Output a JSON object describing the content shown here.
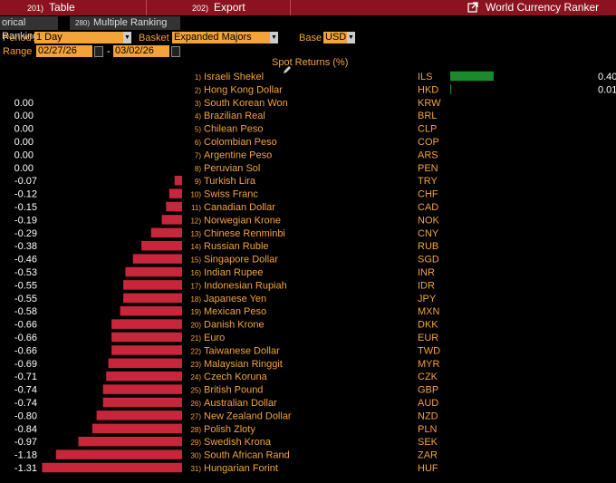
{
  "toolbar": {
    "table_num": "201)",
    "table_label": "Table",
    "export_num": "202)",
    "export_label": "Export",
    "window_title": "World Currency Ranker",
    "launch_icon": "launch-icon"
  },
  "tabs": [
    {
      "label": "orical Ranking",
      "num": ""
    },
    {
      "label": "Multiple Ranking",
      "num": "280)"
    }
  ],
  "controls": {
    "period_label": "Period",
    "period_value": "1 Day",
    "basket_label": "Basket",
    "basket_value": "Expanded Majors",
    "base_label": "Base",
    "base_value": "USD",
    "range_label": "Range",
    "range_start": "02/27/26",
    "range_sep": "-",
    "range_end": "03/02/26"
  },
  "chart_data": {
    "type": "bar",
    "title": "Spot Returns (%)",
    "orientation": "horizontal-diverging",
    "colors": {
      "positive": "#1a8a2a",
      "negative": "#c8263b",
      "value_text": "#ffffff",
      "name_text": "#f2a33a"
    },
    "rows": [
      {
        "rank": "1)",
        "name": "Israeli Shekel",
        "code": "ILS",
        "value": 0.4,
        "label": "0.40"
      },
      {
        "rank": "2)",
        "name": "Hong Kong Dollar",
        "code": "HKD",
        "value": 0.01,
        "label": "0.01"
      },
      {
        "rank": "3)",
        "name": "South Korean Won",
        "code": "KRW",
        "value": 0.0,
        "label": "0.00"
      },
      {
        "rank": "4)",
        "name": "Brazilian Real",
        "code": "BRL",
        "value": 0.0,
        "label": "0.00"
      },
      {
        "rank": "5)",
        "name": "Chilean Peso",
        "code": "CLP",
        "value": 0.0,
        "label": "0.00"
      },
      {
        "rank": "6)",
        "name": "Colombian Peso",
        "code": "COP",
        "value": 0.0,
        "label": "0.00"
      },
      {
        "rank": "7)",
        "name": "Argentine Peso",
        "code": "ARS",
        "value": 0.0,
        "label": "0.00"
      },
      {
        "rank": "8)",
        "name": "Peruvian Sol",
        "code": "PEN",
        "value": 0.0,
        "label": "0.00"
      },
      {
        "rank": "9)",
        "name": "Turkish Lira",
        "code": "TRY",
        "value": -0.07,
        "label": "-0.07"
      },
      {
        "rank": "10)",
        "name": "Swiss Franc",
        "code": "CHF",
        "value": -0.12,
        "label": "-0.12"
      },
      {
        "rank": "11)",
        "name": "Canadian Dollar",
        "code": "CAD",
        "value": -0.15,
        "label": "-0.15"
      },
      {
        "rank": "12)",
        "name": "Norwegian Krone",
        "code": "NOK",
        "value": -0.19,
        "label": "-0.19"
      },
      {
        "rank": "13)",
        "name": "Chinese Renminbi",
        "code": "CNY",
        "value": -0.29,
        "label": "-0.29"
      },
      {
        "rank": "14)",
        "name": "Russian Ruble",
        "code": "RUB",
        "value": -0.38,
        "label": "-0.38"
      },
      {
        "rank": "15)",
        "name": "Singapore Dollar",
        "code": "SGD",
        "value": -0.46,
        "label": "-0.46"
      },
      {
        "rank": "16)",
        "name": "Indian Rupee",
        "code": "INR",
        "value": -0.53,
        "label": "-0.53"
      },
      {
        "rank": "17)",
        "name": "Indonesian Rupiah",
        "code": "IDR",
        "value": -0.55,
        "label": "-0.55"
      },
      {
        "rank": "18)",
        "name": "Japanese Yen",
        "code": "JPY",
        "value": -0.55,
        "label": "-0.55"
      },
      {
        "rank": "19)",
        "name": "Mexican Peso",
        "code": "MXN",
        "value": -0.58,
        "label": "-0.58"
      },
      {
        "rank": "20)",
        "name": "Danish Krone",
        "code": "DKK",
        "value": -0.66,
        "label": "-0.66"
      },
      {
        "rank": "21)",
        "name": "Euro",
        "code": "EUR",
        "value": -0.66,
        "label": "-0.66"
      },
      {
        "rank": "22)",
        "name": "Taiwanese Dollar",
        "code": "TWD",
        "value": -0.66,
        "label": "-0.66"
      },
      {
        "rank": "23)",
        "name": "Malaysian Ringgit",
        "code": "MYR",
        "value": -0.69,
        "label": "-0.69"
      },
      {
        "rank": "24)",
        "name": "Czech Koruna",
        "code": "CZK",
        "value": -0.71,
        "label": "-0.71"
      },
      {
        "rank": "25)",
        "name": "British Pound",
        "code": "GBP",
        "value": -0.74,
        "label": "-0.74"
      },
      {
        "rank": "26)",
        "name": "Australian Dollar",
        "code": "AUD",
        "value": -0.74,
        "label": "-0.74"
      },
      {
        "rank": "27)",
        "name": "New Zealand Dollar",
        "code": "NZD",
        "value": -0.8,
        "label": "-0.80"
      },
      {
        "rank": "28)",
        "name": "Polish Zloty",
        "code": "PLN",
        "value": -0.84,
        "label": "-0.84"
      },
      {
        "rank": "29)",
        "name": "Swedish Krona",
        "code": "SEK",
        "value": -0.97,
        "label": "-0.97"
      },
      {
        "rank": "30)",
        "name": "South African Rand",
        "code": "ZAR",
        "value": -1.18,
        "label": "-1.18"
      },
      {
        "rank": "31)",
        "name": "Hungarian Forint",
        "code": "HUF",
        "value": -1.31,
        "label": "-1.31"
      }
    ]
  }
}
